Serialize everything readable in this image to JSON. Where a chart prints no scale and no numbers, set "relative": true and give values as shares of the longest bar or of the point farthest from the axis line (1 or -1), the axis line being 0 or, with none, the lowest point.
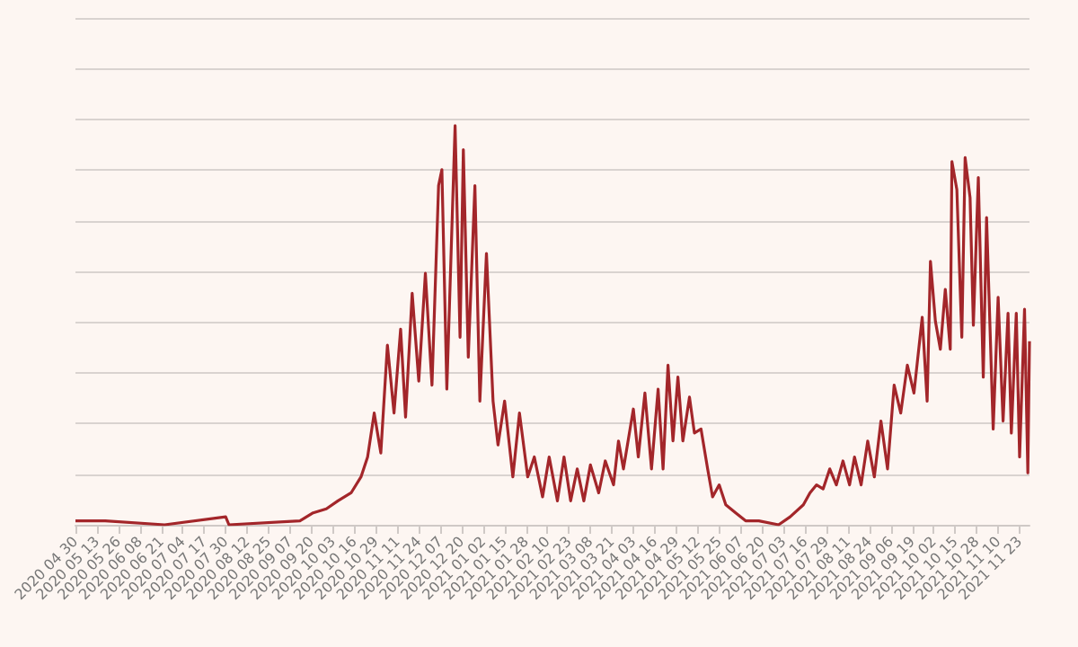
{
  "chart_data": {
    "type": "line",
    "relative": true,
    "grid": "y",
    "marker": "none",
    "line_style": "solid",
    "x": [
      "2020-04-30",
      "2020-05-18",
      "2020-06-23",
      "2020-07-30",
      "2020-08-01",
      "2020-09-13",
      "2020-09-21",
      "2020-09-29",
      "2020-10-06",
      "2020-10-14",
      "2020-10-20",
      "2020-10-24",
      "2020-10-28",
      "2020-11-01",
      "2020-11-05",
      "2020-11-09",
      "2020-11-13",
      "2020-11-16",
      "2020-11-20",
      "2020-11-24",
      "2020-11-28",
      "2020-12-02",
      "2020-12-06",
      "2020-12-08",
      "2020-12-11",
      "2020-12-16",
      "2020-12-19",
      "2020-12-21",
      "2020-12-24",
      "2020-12-28",
      "2020-12-31",
      "2021-01-04",
      "2021-01-08",
      "2021-01-11",
      "2021-01-15",
      "2021-01-20",
      "2021-01-24",
      "2021-01-29",
      "2021-02-02",
      "2021-02-07",
      "2021-02-11",
      "2021-02-16",
      "2021-02-20",
      "2021-02-24",
      "2021-02-28",
      "2021-03-04",
      "2021-03-08",
      "2021-03-13",
      "2021-03-17",
      "2021-03-22",
      "2021-03-25",
      "2021-03-28",
      "2021-04-03",
      "2021-04-06",
      "2021-04-10",
      "2021-04-14",
      "2021-04-18",
      "2021-04-21",
      "2021-04-24",
      "2021-04-27",
      "2021-04-30",
      "2021-05-03",
      "2021-05-07",
      "2021-05-10",
      "2021-05-14",
      "2021-05-18",
      "2021-05-21",
      "2021-05-25",
      "2021-05-29",
      "2021-06-04",
      "2021-06-10",
      "2021-06-18",
      "2021-06-30",
      "2021-07-07",
      "2021-07-15",
      "2021-07-19",
      "2021-07-23",
      "2021-07-27",
      "2021-07-31",
      "2021-08-04",
      "2021-08-08",
      "2021-08-12",
      "2021-08-15",
      "2021-08-19",
      "2021-08-23",
      "2021-08-27",
      "2021-08-31",
      "2021-09-04",
      "2021-09-08",
      "2021-09-12",
      "2021-09-16",
      "2021-09-20",
      "2021-09-25",
      "2021-09-28",
      "2021-09-30",
      "2021-10-03",
      "2021-10-06",
      "2021-10-09",
      "2021-10-12",
      "2021-10-13",
      "2021-10-16",
      "2021-10-19",
      "2021-10-21",
      "2021-10-24",
      "2021-10-26",
      "2021-10-29",
      "2021-11-01",
      "2021-11-03",
      "2021-11-07",
      "2021-11-10",
      "2021-11-13",
      "2021-11-16",
      "2021-11-18",
      "2021-11-21",
      "2021-11-23",
      "2021-11-26",
      "2021-11-28",
      "2021-11-29"
    ],
    "series": [
      {
        "color": "#a3262a",
        "values": [
          0.01,
          0.01,
          0.0,
          0.02,
          0.0,
          0.01,
          0.03,
          0.04,
          0.06,
          0.08,
          0.12,
          0.17,
          0.28,
          0.18,
          0.45,
          0.28,
          0.49,
          0.27,
          0.58,
          0.36,
          0.63,
          0.35,
          0.85,
          0.89,
          0.34,
          1.0,
          0.47,
          0.94,
          0.42,
          0.85,
          0.31,
          0.68,
          0.31,
          0.2,
          0.31,
          0.12,
          0.28,
          0.12,
          0.17,
          0.07,
          0.17,
          0.06,
          0.17,
          0.06,
          0.14,
          0.06,
          0.15,
          0.08,
          0.16,
          0.1,
          0.21,
          0.14,
          0.29,
          0.17,
          0.33,
          0.14,
          0.34,
          0.14,
          0.4,
          0.21,
          0.37,
          0.21,
          0.32,
          0.23,
          0.24,
          0.14,
          0.07,
          0.1,
          0.05,
          0.03,
          0.01,
          0.01,
          0.0,
          0.02,
          0.05,
          0.08,
          0.1,
          0.09,
          0.14,
          0.1,
          0.16,
          0.1,
          0.17,
          0.1,
          0.21,
          0.12,
          0.26,
          0.14,
          0.35,
          0.28,
          0.4,
          0.33,
          0.52,
          0.31,
          0.66,
          0.51,
          0.44,
          0.59,
          0.44,
          0.91,
          0.84,
          0.47,
          0.92,
          0.82,
          0.5,
          0.87,
          0.37,
          0.77,
          0.24,
          0.57,
          0.26,
          0.53,
          0.23,
          0.53,
          0.17,
          0.54,
          0.13,
          0.46
        ]
      }
    ],
    "xlim": [
      "2020-04-30",
      "2021-11-29"
    ],
    "xticks": [
      {
        "value": "2020-04-30",
        "label": "2020 04 30"
      },
      {
        "value": "2020-05-13",
        "label": "2020 05 13"
      },
      {
        "value": "2020-05-26",
        "label": "2020 05 26"
      },
      {
        "value": "2020-06-08",
        "label": "2020 06 08"
      },
      {
        "value": "2020-06-21",
        "label": "2020 06 21"
      },
      {
        "value": "2020-07-04",
        "label": "2020 07 04"
      },
      {
        "value": "2020-07-17",
        "label": "2020 07 17"
      },
      {
        "value": "2020-07-30",
        "label": "2020 07 30"
      },
      {
        "value": "2020-08-12",
        "label": "2020 08 12"
      },
      {
        "value": "2020-08-25",
        "label": "2020 08 25"
      },
      {
        "value": "2020-09-07",
        "label": "2020 09 07"
      },
      {
        "value": "2020-09-20",
        "label": "2020 09 20"
      },
      {
        "value": "2020-10-03",
        "label": "2020 10 03"
      },
      {
        "value": "2020-10-16",
        "label": "2020 10 16"
      },
      {
        "value": "2020-10-29",
        "label": "2020 10 29"
      },
      {
        "value": "2020-11-11",
        "label": "2020 11 11"
      },
      {
        "value": "2020-11-24",
        "label": "2020 11 24"
      },
      {
        "value": "2020-12-07",
        "label": "2020 12 07"
      },
      {
        "value": "2020-12-20",
        "label": "2020 12 20"
      },
      {
        "value": "2021-01-02",
        "label": "2021 01 02"
      },
      {
        "value": "2021-01-15",
        "label": "2021 01 15"
      },
      {
        "value": "2021-01-28",
        "label": "2021 01 28"
      },
      {
        "value": "2021-02-10",
        "label": "2021 02 10"
      },
      {
        "value": "2021-02-23",
        "label": "2021 02 23"
      },
      {
        "value": "2021-03-08",
        "label": "2021 03 08"
      },
      {
        "value": "2021-03-21",
        "label": "2021 03 21"
      },
      {
        "value": "2021-04-03",
        "label": "2021 04 03"
      },
      {
        "value": "2021-04-16",
        "label": "2021 04 16"
      },
      {
        "value": "2021-04-29",
        "label": "2021 04 29"
      },
      {
        "value": "2021-05-12",
        "label": "2021 05 12"
      },
      {
        "value": "2021-05-25",
        "label": "2021 05 25"
      },
      {
        "value": "2021-06-07",
        "label": "2021 06 07"
      },
      {
        "value": "2021-06-20",
        "label": "2021 06 20"
      },
      {
        "value": "2021-07-03",
        "label": "2021 07 03"
      },
      {
        "value": "2021-07-16",
        "label": "2021 07 16"
      },
      {
        "value": "2021-07-29",
        "label": "2021 07 29"
      },
      {
        "value": "2021-08-11",
        "label": "2021 08 11"
      },
      {
        "value": "2021-08-24",
        "label": "2021 08 24"
      },
      {
        "value": "2021-09-06",
        "label": "2021 09 06"
      },
      {
        "value": "2021-09-19",
        "label": "2021 09 19"
      },
      {
        "value": "2021-10-02",
        "label": "2021 10 02"
      },
      {
        "value": "2021-10-15",
        "label": "2021 10 15"
      },
      {
        "value": "2021-10-28",
        "label": "2021 10 28"
      },
      {
        "value": "2021-11-10",
        "label": "2021 11 10"
      },
      {
        "value": "2021-11-23",
        "label": "2021 11 23"
      }
    ]
  }
}
